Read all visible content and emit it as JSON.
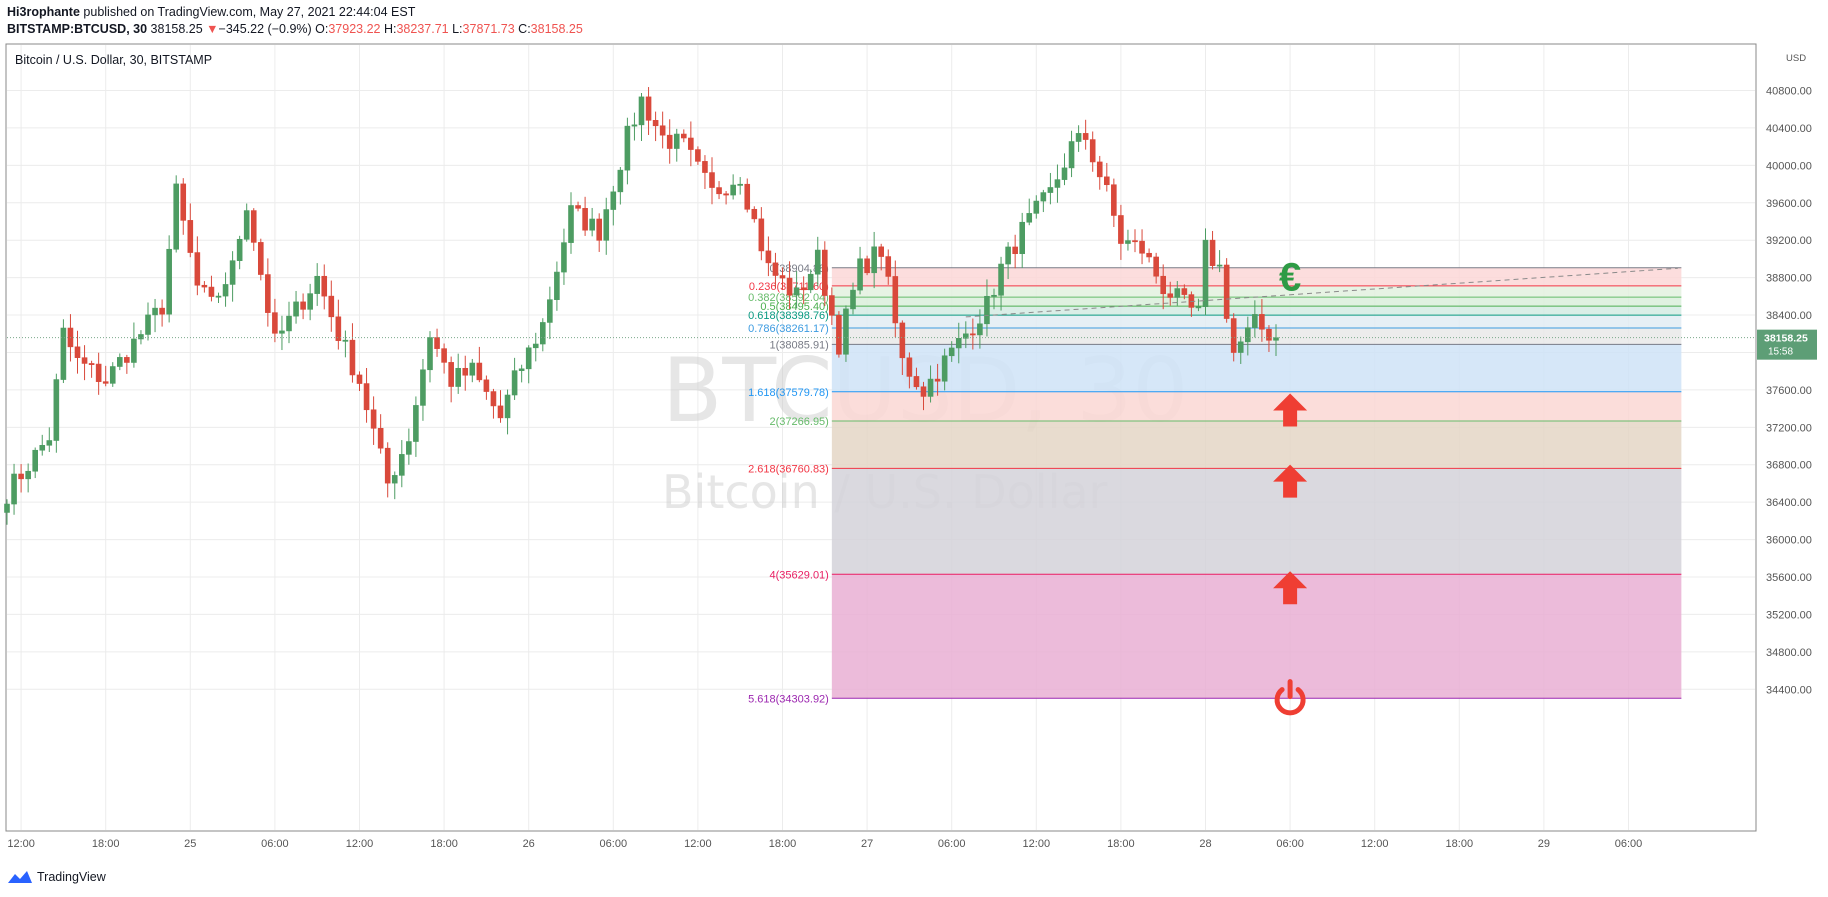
{
  "header": {
    "author": "Hi3rophante",
    "published": " published on TradingView.com, May 27, 2021 22:44:04 EST",
    "symbol": "BITSTAMP:BTCUSD, 30",
    "price": "38158.25",
    "arrow": "▼",
    "change": "−345.22 (−0.9%)",
    "o_label": "O:",
    "o_val": "37923.22",
    "h_label": "H:",
    "h_val": "38237.71",
    "l_label": "L:",
    "l_val": "37871.73",
    "c_label": "C:",
    "c_val": "38158.25"
  },
  "pane_title": "Bitcoin / U.S. Dollar, 30, BITSTAMP",
  "watermark": {
    "symbol": "BTCUSD, 30",
    "name": "Bitcoin / U.S. Dollar"
  },
  "footer": {
    "brand": "TradingView"
  },
  "colors": {
    "up": "#4d9c62",
    "down": "#d9493b",
    "grid": "#ececec",
    "axis": "#555555",
    "price_tag": "#5d9e76"
  },
  "chart_data": {
    "type": "candlestick",
    "currency": "USD",
    "y_ticks": [
      34400,
      34800,
      35200,
      35600,
      36000,
      36400,
      36800,
      37200,
      37600,
      38000,
      38400,
      38800,
      39200,
      39600,
      40000,
      40400,
      40800
    ],
    "y_tick_labels": [
      "34400.00",
      "34800.00",
      "35200.00",
      "35600.00",
      "36000.00",
      "36400.00",
      "36800.00",
      "37200.00",
      "37600.00",
      "38000.00",
      "38400.00",
      "38800.00",
      "39200.00",
      "39600.00",
      "40000.00",
      "40400.00",
      "40800.00"
    ],
    "ylim": [
      34000,
      41200
    ],
    "x_ticks": [
      {
        "t": 2,
        "label": "12:00"
      },
      {
        "t": 14,
        "label": "18:00"
      },
      {
        "t": 26,
        "label": "25"
      },
      {
        "t": 38,
        "label": "06:00"
      },
      {
        "t": 50,
        "label": "12:00"
      },
      {
        "t": 62,
        "label": "18:00"
      },
      {
        "t": 74,
        "label": "26"
      },
      {
        "t": 86,
        "label": "06:00"
      },
      {
        "t": 98,
        "label": "12:00"
      },
      {
        "t": 110,
        "label": "18:00"
      },
      {
        "t": 122,
        "label": "27"
      },
      {
        "t": 134,
        "label": "06:00"
      },
      {
        "t": 146,
        "label": "12:00"
      },
      {
        "t": 158,
        "label": "18:00"
      },
      {
        "t": 170,
        "label": "28"
      },
      {
        "t": 182,
        "label": "06:00"
      },
      {
        "t": 194,
        "label": "12:00"
      },
      {
        "t": 206,
        "label": "18:00"
      },
      {
        "t": 218,
        "label": "29"
      },
      {
        "t": 230,
        "label": "06:00"
      }
    ],
    "close_anchors": [
      [
        0,
        36500
      ],
      [
        6,
        37100
      ],
      [
        8,
        38200
      ],
      [
        10,
        37900
      ],
      [
        14,
        37700
      ],
      [
        18,
        38100
      ],
      [
        22,
        38500
      ],
      [
        24,
        39700
      ],
      [
        27,
        38700
      ],
      [
        29,
        38500
      ],
      [
        32,
        38900
      ],
      [
        34,
        39600
      ],
      [
        38,
        38100
      ],
      [
        44,
        38800
      ],
      [
        47,
        38200
      ],
      [
        50,
        37700
      ],
      [
        54,
        36600
      ],
      [
        57,
        37100
      ],
      [
        60,
        38200
      ],
      [
        63,
        37700
      ],
      [
        66,
        37800
      ],
      [
        70,
        37300
      ],
      [
        72,
        37700
      ],
      [
        76,
        38300
      ],
      [
        80,
        39500
      ],
      [
        84,
        39300
      ],
      [
        88,
        40300
      ],
      [
        90,
        40700
      ],
      [
        93,
        40300
      ],
      [
        96,
        40200
      ],
      [
        100,
        39700
      ],
      [
        104,
        39900
      ],
      [
        106,
        39400
      ],
      [
        108,
        38900
      ],
      [
        112,
        38600
      ],
      [
        115,
        39000
      ],
      [
        118,
        38100
      ],
      [
        121,
        38900
      ],
      [
        124,
        39100
      ],
      [
        127,
        37900
      ],
      [
        130,
        37600
      ],
      [
        133,
        37900
      ],
      [
        136,
        38200
      ],
      [
        139,
        38500
      ],
      [
        141,
        38900
      ],
      [
        144,
        39300
      ],
      [
        148,
        39700
      ],
      [
        151,
        40200
      ],
      [
        153,
        40300
      ],
      [
        156,
        39700
      ],
      [
        158,
        39200
      ],
      [
        161,
        39100
      ],
      [
        164,
        38700
      ],
      [
        167,
        38500
      ],
      [
        169,
        38400
      ],
      [
        170,
        39100
      ],
      [
        172,
        38900
      ],
      [
        174,
        38000
      ],
      [
        177,
        38300
      ],
      [
        180,
        38158
      ]
    ],
    "current_price": 38158.25,
    "current_price_label": "38158.25",
    "countdown": "15:58",
    "fib_levels": [
      {
        "ratio": "0",
        "price": 38904.88,
        "label": "0(38904.88)",
        "color": "#787b86",
        "fill": null
      },
      {
        "ratio": "0.236",
        "price": 38711.6,
        "label": "0.236(38711.60)",
        "color": "#f23645",
        "fill": "#fbd7d7"
      },
      {
        "ratio": "0.382",
        "price": 38592.04,
        "label": "0.382(38592.04)",
        "color": "#66bb6a",
        "fill": "#e3f1df"
      },
      {
        "ratio": "0.5",
        "price": 38495.4,
        "label": "0.5(38495.40)",
        "color": "#4caf50",
        "fill": "#d9eedb"
      },
      {
        "ratio": "0.618",
        "price": 38398.76,
        "label": "0.618(38398.76)",
        "color": "#089981",
        "fill": "#d3ebe3"
      },
      {
        "ratio": "0.786",
        "price": 38261.17,
        "label": "0.786(38261.17)",
        "color": "#3c9be0",
        "fill": "#e2ecf3"
      },
      {
        "ratio": "1",
        "price": 38085.91,
        "label": "1(38085.91)",
        "color": "#787b86",
        "fill": "#e9e9e9"
      },
      {
        "ratio": "1.618",
        "price": 37579.78,
        "label": "1.618(37579.78)",
        "color": "#2196f3",
        "fill": "#cfe3f7"
      },
      {
        "ratio": "2",
        "price": 37266.95,
        "label": "2(37266.95)",
        "color": "#66bb6a",
        "fill": "#fad7d4"
      },
      {
        "ratio": "2.618",
        "price": 36760.83,
        "label": "2.618(36760.83)",
        "color": "#f23645",
        "fill": "#e4d6c6"
      },
      {
        "ratio": "4",
        "price": 35629.01,
        "label": "4(35629.01)",
        "color": "#e91e63",
        "fill": "#d4d2d9"
      },
      {
        "ratio": "5.618",
        "price": 34303.92,
        "label": "5.618(34303.92)",
        "color": "#9c27b0",
        "fill": "#e9afd3"
      }
    ],
    "trendline": {
      "from": {
        "t": 136,
        "price": 38380
      },
      "to": {
        "t": 237,
        "price": 38900
      }
    },
    "markers": [
      {
        "type": "euro-icon",
        "t": 182,
        "price": 38800,
        "color": "#2e9b45"
      },
      {
        "type": "up-arrow-icon",
        "t": 182,
        "price": 37380,
        "color": "#ef3e33"
      },
      {
        "type": "up-arrow-icon",
        "t": 182,
        "price": 36620,
        "color": "#ef3e33"
      },
      {
        "type": "up-arrow-icon",
        "t": 182,
        "price": 35480,
        "color": "#ef3e33"
      },
      {
        "type": "power-icon",
        "t": 182,
        "price": 34300,
        "color": "#ef3e33"
      }
    ]
  }
}
